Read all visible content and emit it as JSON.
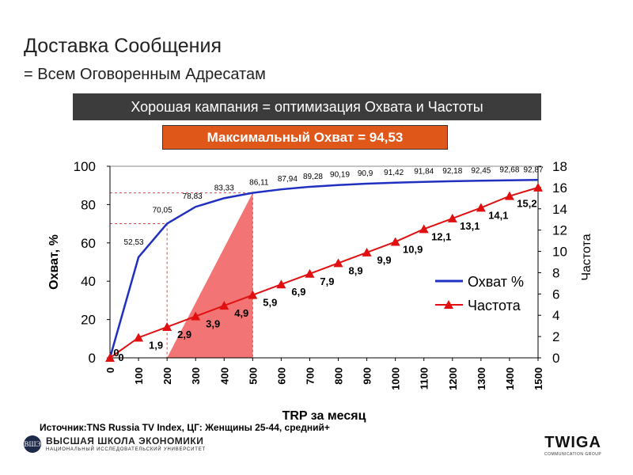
{
  "header": {
    "title": "Доставка Сообщения",
    "subtitle": "= Всем Оговоренным Адресатам"
  },
  "banners": {
    "main": "Хорошая кампания = оптимизация Охвата и Частоты",
    "max_reach": "Максимальный Охват = 94,53"
  },
  "chart_data": {
    "type": "line",
    "x": [
      0,
      100,
      200,
      300,
      400,
      500,
      600,
      700,
      800,
      900,
      1000,
      1100,
      1200,
      1300,
      1400,
      1500
    ],
    "xlabel": "TRP за месяц",
    "ylabel_left": "Охват, %",
    "ylabel_right": "Частота",
    "ylim_left": [
      0,
      100
    ],
    "ylim_right": [
      0,
      18
    ],
    "yticks_left": [
      "0",
      "20",
      "40",
      "60",
      "80",
      "100"
    ],
    "yticks_right": [
      "0",
      "2",
      "4",
      "6",
      "8",
      "10",
      "12",
      "14",
      "16",
      "18"
    ],
    "grid": false,
    "legend_position": "right",
    "series": [
      {
        "name": "Охват %",
        "axis": "left",
        "color": "#1f2fbf",
        "values": [
          0,
          52.53,
          70.05,
          78.83,
          83.33,
          86.11,
          87.94,
          89.28,
          90.19,
          90.9,
          91.42,
          91.84,
          92.18,
          92.45,
          92.68,
          92.87
        ],
        "labels": [
          "0",
          "52,53",
          "70,05",
          "78,83",
          "83,33",
          "86,11",
          "87,94",
          "89,28",
          "90,19",
          "90,9",
          "91,42",
          "91,84",
          "92,18",
          "92,45",
          "92,68",
          "92,87"
        ]
      },
      {
        "name": "Частота",
        "axis": "right",
        "color": "#e01010",
        "values": [
          0,
          1.9,
          2.9,
          3.9,
          4.9,
          5.9,
          6.9,
          7.9,
          8.9,
          9.9,
          10.9,
          12.1,
          13.1,
          14.1,
          15.2,
          16
        ],
        "labels": [
          "0",
          "1,9",
          "2,9",
          "3,9",
          "4,9",
          "5,9",
          "6,9",
          "7,9",
          "8,9",
          "9,9",
          "10,9",
          "12,1",
          "13,1",
          "14,1",
          "15,2",
          ""
        ]
      }
    ],
    "annotations": {
      "dashed_lines": [
        {
          "trp": 200,
          "reach": 70.05,
          "color": "#e04040"
        },
        {
          "trp": 500,
          "reach": 86.11,
          "color": "#e04040"
        }
      ],
      "shaded_triangle": {
        "from_trp": 200,
        "to_trp": 500,
        "reach": 86.11,
        "color": "#f27474"
      }
    }
  },
  "footer": {
    "source": "Источник:TNS Russia TV Index, ЦГ: Женщины 25-44, средний+",
    "hse_name": "ВЫСШАЯ ШКОЛА ЭКОНОМИКИ",
    "hse_sub": "НАЦИОНАЛЬНЫЙ ИССЛЕДОВАТЕЛЬСКИЙ УНИВЕРСИТЕТ",
    "hse_seal": "ВШЭ",
    "twiga_name": "TWIGA",
    "twiga_sub": "COMMUNICATION GROUP"
  }
}
